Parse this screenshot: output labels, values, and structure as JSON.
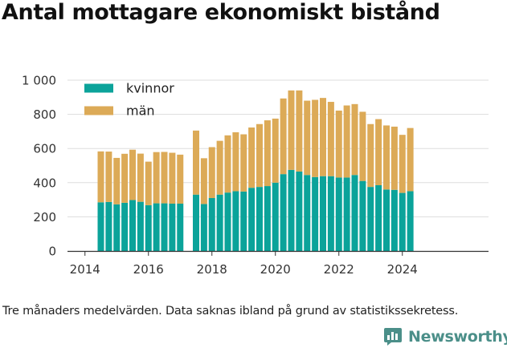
{
  "title": "Antal mottagare ekonomiskt bistånd",
  "caption": "Tre månaders medelvärden. Data saknas ibland på grund av statistikssekretess.",
  "brand": {
    "name": "Newsworthy",
    "icon": "newsworthy-chat-bar-icon",
    "color": "#4b8f89"
  },
  "colors": {
    "kvinnor": "#0ba39a",
    "man": "#dcaa57",
    "grid": "#dddddd",
    "axis": "#333333"
  },
  "chart_data": {
    "type": "bar",
    "stacked": true,
    "title": "Antal mottagare ekonomiskt bistånd",
    "xlabel": "",
    "ylabel": "",
    "ylim": [
      0,
      1000
    ],
    "yticks": [
      0,
      200,
      400,
      600,
      800,
      1000
    ],
    "ytick_labels": [
      "0",
      "200",
      "400",
      "600",
      "800",
      "1 000"
    ],
    "xticks": [
      2014,
      2016,
      2018,
      2020,
      2022,
      2024
    ],
    "xtick_labels": [
      "2014",
      "2016",
      "2018",
      "2020",
      "2022",
      "2024"
    ],
    "grid": "horizontal",
    "legend_position": "top-left",
    "x": [
      2014.5,
      2014.75,
      2015.0,
      2015.25,
      2015.5,
      2015.75,
      2016.0,
      2016.25,
      2016.5,
      2016.75,
      2017.0,
      2017.25,
      2017.5,
      2017.75,
      2018.0,
      2018.25,
      2018.5,
      2018.75,
      2019.0,
      2019.25,
      2019.5,
      2019.75,
      2020.0,
      2020.25,
      2020.5,
      2020.75,
      2021.0,
      2021.25,
      2021.5,
      2021.75,
      2022.0,
      2022.25,
      2022.5,
      2022.75,
      2023.0,
      2023.25,
      2023.5,
      2023.75,
      2024.0,
      2024.25
    ],
    "series": [
      {
        "name": "kvinnor",
        "values": [
          285,
          287,
          273,
          282,
          298,
          288,
          268,
          279,
          279,
          277,
          277,
          null,
          330,
          275,
          310,
          330,
          342,
          350,
          348,
          370,
          375,
          380,
          400,
          450,
          475,
          465,
          445,
          433,
          438,
          438,
          430,
          430,
          445,
          410,
          375,
          385,
          360,
          358,
          340,
          350
        ]
      },
      {
        "name": "män",
        "values": [
          298,
          295,
          272,
          287,
          295,
          282,
          255,
          300,
          301,
          298,
          287,
          null,
          375,
          268,
          298,
          315,
          335,
          345,
          335,
          353,
          368,
          385,
          375,
          443,
          465,
          475,
          435,
          452,
          458,
          435,
          392,
          422,
          415,
          405,
          368,
          387,
          375,
          370,
          340,
          370
        ]
      }
    ]
  }
}
